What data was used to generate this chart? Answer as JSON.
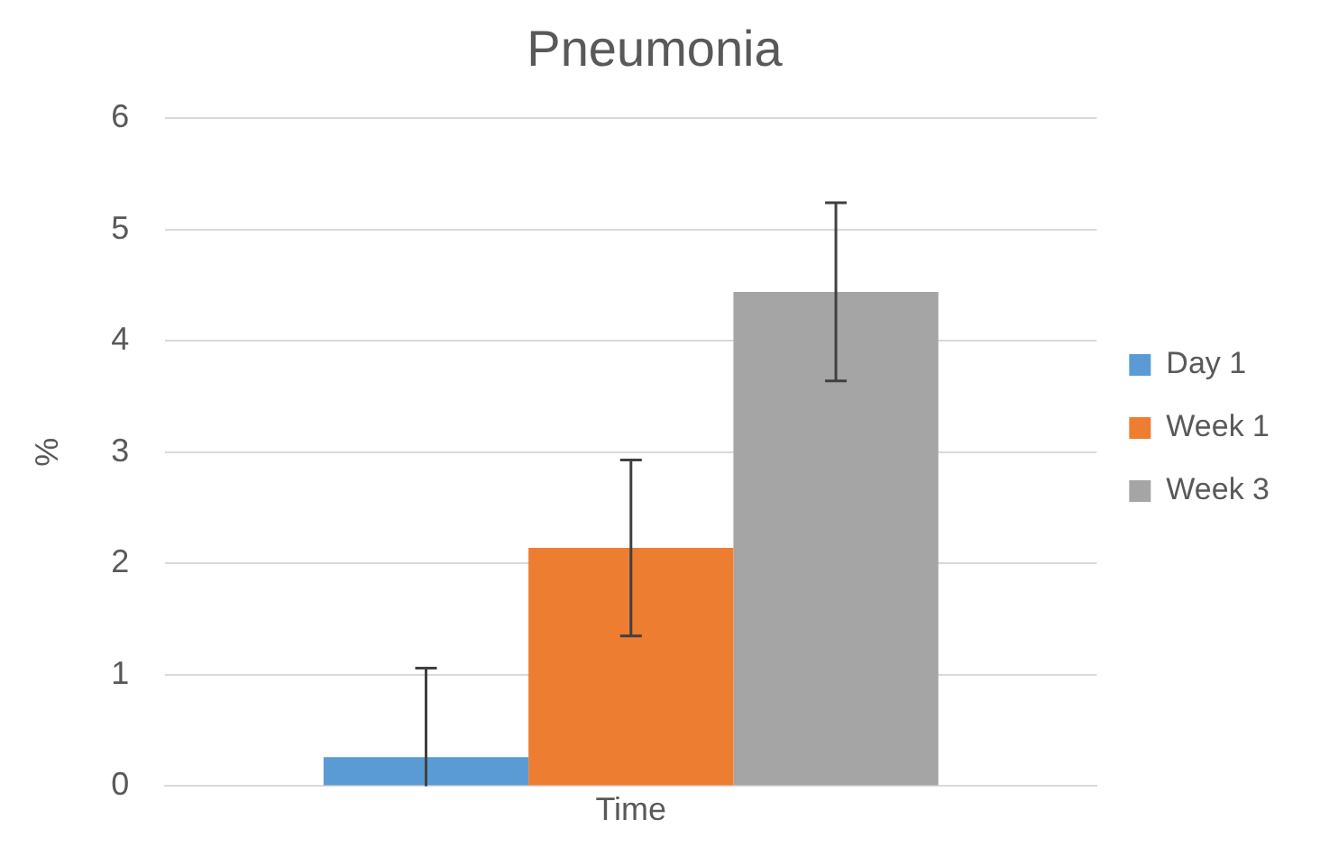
{
  "chart_data": {
    "type": "bar",
    "title": "Pneumonia",
    "ylabel": "%",
    "categories": [
      "Time"
    ],
    "series": [
      {
        "name": "Day 1",
        "color": "#5b9bd5",
        "values": [
          0.26
        ],
        "errors": [
          [
            0,
            1.06
          ]
        ]
      },
      {
        "name": "Week 1",
        "color": "#ed7d31",
        "values": [
          2.14
        ],
        "errors": [
          0.79
        ]
      },
      {
        "name": "Week 3",
        "color": "#a5a5a5",
        "values": [
          4.44
        ],
        "errors": [
          0.8
        ]
      }
    ],
    "ylim": [
      0,
      6
    ],
    "yticks": [
      0,
      1,
      2,
      3,
      4,
      5,
      6
    ],
    "grid": "y",
    "legend": "right"
  }
}
